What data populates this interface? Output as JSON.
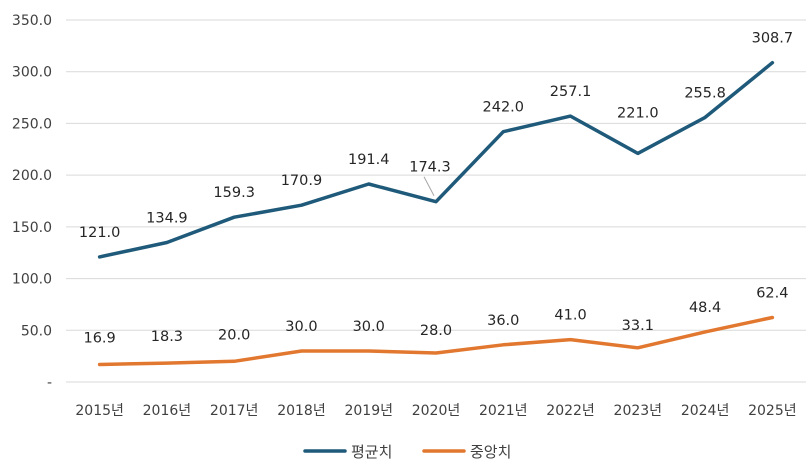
{
  "chart_data": {
    "type": "line",
    "categories": [
      "2015년",
      "2016년",
      "2017년",
      "2018년",
      "2019년",
      "2020년",
      "2021년",
      "2022년",
      "2023년",
      "2024년",
      "2025년"
    ],
    "series": [
      {
        "name": "평균치",
        "color": "#1f5a7a",
        "values": [
          121.0,
          134.9,
          159.3,
          170.9,
          191.4,
          174.3,
          242.0,
          257.1,
          221.0,
          255.8,
          308.7
        ],
        "labels": [
          "121.0",
          "134.9",
          "159.3",
          "170.9",
          "191.4",
          "174.3",
          "242.0",
          "257.1",
          "221.0",
          "255.8",
          "308.7"
        ]
      },
      {
        "name": "중앙치",
        "color": "#e2782f",
        "values": [
          16.9,
          18.3,
          20.0,
          30.0,
          30.0,
          28.0,
          36.0,
          41.0,
          33.1,
          48.4,
          62.4
        ],
        "labels": [
          "16.9",
          "18.3",
          "20.0",
          "30.0",
          "30.0",
          "28.0",
          "36.0",
          "41.0",
          "33.1",
          "48.4",
          "62.4"
        ]
      }
    ],
    "ylim": [
      0,
      350
    ],
    "yticks": [
      0,
      50,
      100,
      150,
      200,
      250,
      300,
      350
    ],
    "ytick_labels": [
      "-",
      "50.0",
      "100.0",
      "150.0",
      "200.0",
      "250.0",
      "300.0",
      "350.0"
    ],
    "grid": true,
    "legend_position": "bottom",
    "title": "",
    "xlabel": "",
    "ylabel": ""
  }
}
